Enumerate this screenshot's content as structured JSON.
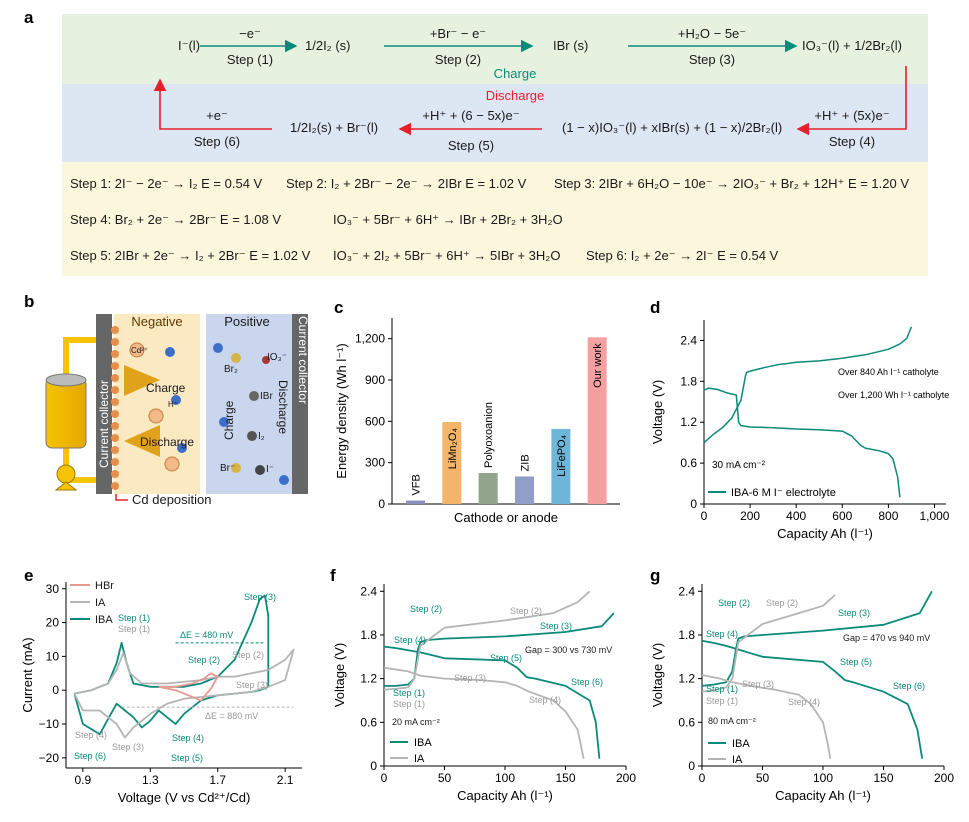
{
  "panel_labels": {
    "a": "a",
    "b": "b",
    "c": "c",
    "d": "d",
    "e": "e",
    "f": "f",
    "g": "g"
  },
  "colors": {
    "teal": "#0a8a7a",
    "red": "#e6202a",
    "gray": "#b5b5b5",
    "green_band": "#e6f1df",
    "blue_band": "#dde6f3",
    "cream_band": "#fbf6dc",
    "salmon": "#e8998f"
  },
  "panel_a": {
    "charge_label": "Charge",
    "discharge_label": "Discharge",
    "top_row": {
      "n1": "I⁻(l)",
      "n2": "1/2I₂ (s)",
      "n3": "IBr (s)",
      "n4": "IO₃⁻(l) + 1/2Br₂(l)",
      "a1_top": "−e⁻",
      "a1_bot": "Step (1)",
      "a2_top": "+Br⁻ − e⁻",
      "a2_bot": "Step (2)",
      "a3_top": "+H₂O − 5e⁻",
      "a3_bot": "Step (3)"
    },
    "bottom_row": {
      "n1": "1/2I₂(s) + Br⁻(l)",
      "n2": "(1 − x)IO₃⁻(l) + xIBr(s) + (1 − x)/2Br₂(l)",
      "a6_top": "+e⁻",
      "a6_bot": "Step (6)",
      "a5_top": "+H⁺ + (6 − 5x)e⁻",
      "a5_bot": "Step (5)",
      "a4_top": "+H⁺ + (5x)e⁻",
      "a4_bot": "Step (4)"
    },
    "equations": {
      "s1": "Step 1: 2I⁻ − 2e⁻ → I₂  E = 0.54 V",
      "s2": "Step 2: I₂ + 2Br⁻ − 2e⁻ → 2IBr  E = 1.02 V",
      "s3": "Step 3: 2IBr + 6H₂O − 10e⁻ → 2IO₃⁻ + Br₂ + 12H⁺  E = 1.20 V",
      "s4": "Step 4: Br₂ + 2e⁻ → 2Br⁻  E = 1.08 V",
      "s4b": "IO₃⁻ + 5Br⁻ + 6H⁺ → IBr + 2Br₂ + 3H₂O",
      "s5": "Step 5: 2IBr + 2e⁻ → I₂ + 2Br⁻  E = 1.02 V",
      "s5b": "IO₃⁻ + 2I₂ + 5Br⁻ + 6H⁺ → 5IBr + 3H₂O",
      "s6": "Step 6: I₂ + 2e⁻ → 2I⁻  E = 0.54 V"
    }
  },
  "panel_b": {
    "negative": "Negative",
    "positive": "Positive",
    "collector_left": "Current collector",
    "collector_right": "Current collector",
    "charge": "Charge",
    "discharge": "Discharge",
    "charge_mid": "Charge",
    "discharge_right": "Discharge",
    "cd_deposition": "Cd deposition",
    "species": {
      "cd": "Cd²⁺",
      "h": "H⁺",
      "io3": "IO₃⁻",
      "br2": "Br₂",
      "ibr": "IBr",
      "i2": "I₂",
      "br": "Br⁻",
      "i": "I⁻"
    }
  },
  "chart_data": [
    {
      "panel": "c",
      "type": "bar",
      "categories": [
        "VFB",
        "LiMn2O4",
        "Polyoxoanion",
        "ZIB",
        "LiFePO4",
        "Our work"
      ],
      "display_labels": [
        "VFB",
        "LiMn₂O₄",
        "Polyoxoanion",
        "ZIB",
        "LiFePO₄",
        "Our work"
      ],
      "values": [
        25,
        595,
        225,
        200,
        545,
        1210
      ],
      "colors": [
        "#8f8fbf",
        "#f2b56a",
        "#8fa48a",
        "#8f9fc8",
        "#6fb5d8",
        "#f5a0a0"
      ],
      "xlabel": "Cathode or anode",
      "ylabel": "Energy density (Wh l⁻¹)",
      "ylim": [
        0,
        1350
      ],
      "yticks": [
        0,
        300,
        600,
        900,
        1200
      ],
      "ytick_labels": [
        "0",
        "300",
        "600",
        "900",
        "1,200"
      ]
    },
    {
      "panel": "d",
      "type": "line",
      "xlabel": "Capacity Ah (l⁻¹)",
      "ylabel": "Voltage (V)",
      "xlim": [
        0,
        1050
      ],
      "ylim": [
        0,
        2.7
      ],
      "xticks": [
        0,
        200,
        400,
        600,
        800,
        1000
      ],
      "xtick_labels": [
        "0",
        "200",
        "400",
        "600",
        "800",
        "1,000"
      ],
      "yticks": [
        0,
        0.6,
        1.2,
        1.8,
        2.4
      ],
      "ytick_labels": [
        "0",
        "0.6",
        "1.2",
        "1.8",
        "2.4"
      ],
      "annotations": [
        "Over 840 Ah l⁻¹ catholyte",
        "Over 1,200 Wh l⁻¹ catholyte",
        "30 mA cm⁻²"
      ],
      "legend": "IBA-6 M I⁻ electrolyte",
      "series": [
        {
          "name": "charge",
          "x": [
            0,
            40,
            80,
            120,
            160,
            180,
            185,
            200,
            260,
            300,
            330,
            360,
            400,
            500,
            600,
            700,
            800,
            850,
            880,
            900
          ],
          "y": [
            0.9,
            1.02,
            1.12,
            1.26,
            1.52,
            1.88,
            1.93,
            1.95,
            2.0,
            2.03,
            2.05,
            2.06,
            2.08,
            2.1,
            2.14,
            2.19,
            2.27,
            2.35,
            2.43,
            2.6
          ]
        },
        {
          "name": "discharge",
          "x": [
            0,
            20,
            60,
            100,
            140,
            150,
            160,
            200,
            300,
            400,
            500,
            600,
            640,
            660,
            680,
            700,
            760,
            800,
            820,
            840,
            850
          ],
          "y": [
            1.67,
            1.7,
            1.68,
            1.63,
            1.6,
            1.2,
            1.15,
            1.13,
            1.12,
            1.1,
            1.09,
            1.07,
            1.0,
            0.93,
            0.86,
            0.82,
            0.78,
            0.74,
            0.66,
            0.4,
            0.1
          ]
        }
      ]
    },
    {
      "panel": "e",
      "type": "line",
      "xlabel": "Voltage (V vs Cd²⁺/Cd)",
      "ylabel": "Current (mA)",
      "xlim": [
        0.8,
        2.2
      ],
      "ylim": [
        -23,
        32
      ],
      "xticks": [
        0.9,
        1.3,
        1.7,
        2.1
      ],
      "xtick_labels": [
        "0.9",
        "1.3",
        "1.7",
        "2.1"
      ],
      "yticks": [
        -20,
        -10,
        0,
        10,
        20,
        30
      ],
      "ytick_labels": [
        "−20",
        "−10",
        "0",
        "10",
        "20",
        "30"
      ],
      "legend": [
        "HBr",
        "IA",
        "IBA"
      ],
      "annotations": [
        "Step (1)",
        "Step (1)",
        "ΔE = 480 mV",
        "ΔE = 880 mV",
        "Step (2)",
        "Step (2)",
        "Step (3)",
        "Step (3)",
        "Step (4)",
        "Step (4)",
        "Step (5)",
        "Step (6)"
      ],
      "series": [
        {
          "name": "IBA",
          "x": [
            0.85,
            0.95,
            1.05,
            1.1,
            1.13,
            1.16,
            1.2,
            1.3,
            1.4,
            1.5,
            1.6,
            1.7,
            1.8,
            1.9,
            1.95,
            1.98,
            2.0,
            2.0,
            1.95,
            1.9,
            1.8,
            1.7,
            1.6,
            1.5,
            1.45,
            1.4,
            1.35,
            1.3,
            1.25,
            1.2,
            1.15,
            1.1,
            1.0,
            0.9,
            0.85
          ],
          "y": [
            -1,
            0,
            2,
            8,
            14,
            8,
            2,
            1,
            1,
            1,
            2,
            4,
            9,
            20,
            27,
            28,
            22,
            1,
            0,
            -0.5,
            -1,
            -1.5,
            -3,
            -7,
            -10,
            -8,
            -6,
            -9,
            -11,
            -8,
            -6,
            -4,
            -13,
            -10,
            -1
          ]
        },
        {
          "name": "IA",
          "x": [
            0.85,
            0.95,
            1.05,
            1.1,
            1.14,
            1.18,
            1.25,
            1.4,
            1.6,
            1.7,
            1.8,
            1.9,
            2.0,
            2.1,
            2.15,
            2.1,
            2.0,
            1.9,
            1.8,
            1.7,
            1.6,
            1.5,
            1.4,
            1.3,
            1.2,
            1.15,
            1.1,
            1.0,
            0.9,
            0.85
          ],
          "y": [
            -1,
            0,
            2,
            6,
            11,
            5,
            2,
            2,
            3,
            4,
            4,
            5,
            6,
            9,
            12,
            3,
            1,
            -0.5,
            -1,
            -1.5,
            -2,
            -2.5,
            -4,
            -7,
            -11,
            -14,
            -10,
            -6,
            -6,
            -1
          ]
        },
        {
          "name": "HBr",
          "x": [
            1.35,
            1.45,
            1.55,
            1.62,
            1.66,
            1.7,
            1.66,
            1.6,
            1.5,
            1.45,
            1.4,
            1.35
          ],
          "y": [
            1,
            1,
            2,
            3.5,
            5,
            4,
            0.5,
            -3,
            -1,
            0,
            0.5,
            1
          ]
        }
      ]
    },
    {
      "panel": "f",
      "type": "line",
      "xlabel": "Capacity Ah (l⁻¹)",
      "ylabel": "Voltage (V)",
      "xlim": [
        0,
        200
      ],
      "ylim": [
        0,
        2.5
      ],
      "xticks": [
        0,
        50,
        100,
        150,
        200
      ],
      "xtick_labels": [
        "0",
        "50",
        "100",
        "150",
        "200"
      ],
      "yticks": [
        0,
        0.6,
        1.2,
        1.8,
        2.4
      ],
      "ytick_labels": [
        "0",
        "0.6",
        "1.2",
        "1.8",
        "2.4"
      ],
      "annotations": [
        "Gap = 300 vs 730 mV",
        "20 mA cm⁻²"
      ],
      "legend": [
        "IBA",
        "IA"
      ],
      "series": [
        {
          "name": "IBA charge",
          "x": [
            0,
            10,
            20,
            25,
            28,
            30,
            35,
            50,
            100,
            150,
            180,
            190
          ],
          "y": [
            1.1,
            1.1,
            1.12,
            1.2,
            1.6,
            1.7,
            1.73,
            1.75,
            1.78,
            1.84,
            1.92,
            2.1
          ]
        },
        {
          "name": "IBA discharge",
          "x": [
            0,
            10,
            20,
            30,
            40,
            50,
            100,
            110,
            118,
            125,
            150,
            170,
            175,
            178
          ],
          "y": [
            1.64,
            1.62,
            1.59,
            1.56,
            1.52,
            1.48,
            1.45,
            1.35,
            1.22,
            1.2,
            1.1,
            0.9,
            0.6,
            0.1
          ]
        },
        {
          "name": "IA charge",
          "x": [
            0,
            10,
            20,
            25,
            30,
            50,
            100,
            140,
            160,
            170
          ],
          "y": [
            1.05,
            1.06,
            1.08,
            1.2,
            1.65,
            1.9,
            2.0,
            2.1,
            2.25,
            2.4
          ]
        },
        {
          "name": "IA discharge",
          "x": [
            0,
            20,
            30,
            50,
            80,
            100,
            110,
            120,
            140,
            150,
            160,
            165
          ],
          "y": [
            1.35,
            1.3,
            1.24,
            1.2,
            1.18,
            1.15,
            1.1,
            1.02,
            0.9,
            0.75,
            0.5,
            0.1
          ]
        }
      ]
    },
    {
      "panel": "g",
      "type": "line",
      "xlabel": "Capacity Ah (l⁻¹)",
      "ylabel": "Voltage (V)",
      "xlim": [
        0,
        200
      ],
      "ylim": [
        0,
        2.5
      ],
      "xticks": [
        0,
        50,
        100,
        150,
        200
      ],
      "xtick_labels": [
        "0",
        "50",
        "100",
        "150",
        "200"
      ],
      "yticks": [
        0,
        0.6,
        1.2,
        1.8,
        2.4
      ],
      "ytick_labels": [
        "0",
        "0.6",
        "1.2",
        "1.8",
        "2.4"
      ],
      "annotations": [
        "Gap = 470 vs 940 mV",
        "80 mA cm⁻²"
      ],
      "legend": [
        "IBA",
        "IA"
      ],
      "series": [
        {
          "name": "IBA charge",
          "x": [
            0,
            10,
            20,
            25,
            28,
            30,
            35,
            50,
            100,
            150,
            180,
            190
          ],
          "y": [
            1.1,
            1.12,
            1.15,
            1.3,
            1.6,
            1.75,
            1.78,
            1.8,
            1.86,
            1.94,
            2.1,
            2.4
          ]
        },
        {
          "name": "IBA discharge",
          "x": [
            0,
            10,
            20,
            30,
            40,
            50,
            100,
            110,
            118,
            125,
            150,
            170,
            178,
            182
          ],
          "y": [
            1.72,
            1.69,
            1.65,
            1.6,
            1.55,
            1.5,
            1.43,
            1.3,
            1.18,
            1.15,
            1.02,
            0.85,
            0.5,
            0.1
          ]
        },
        {
          "name": "IA charge",
          "x": [
            0,
            10,
            20,
            25,
            30,
            50,
            80,
            100,
            110
          ],
          "y": [
            1.02,
            1.04,
            1.08,
            1.2,
            1.7,
            1.95,
            2.1,
            2.2,
            2.35
          ]
        },
        {
          "name": "IA discharge",
          "x": [
            0,
            15,
            25,
            40,
            60,
            80,
            90,
            100,
            104,
            106
          ],
          "y": [
            1.25,
            1.2,
            1.15,
            1.1,
            1.05,
            0.98,
            0.85,
            0.6,
            0.3,
            0.1
          ]
        }
      ]
    }
  ],
  "panel_e_legend": [
    "HBr",
    "IA",
    "IBA"
  ],
  "panel_e_annot": {
    "step1a": "Step (1)",
    "step1b": "Step (1)",
    "de480": "ΔE = 480 mV",
    "de880": "ΔE = 880 mV",
    "step2a": "Step (2)",
    "step2b": "Step (2)",
    "step3a": "Step (3)",
    "step3b": "Step (3)",
    "step4a": "Step (4)",
    "step4b": "Step (4)",
    "step3c": "Step (3)",
    "step5": "Step (5)",
    "step6": "Step (6)"
  },
  "panel_f_annot": {
    "step2a": "Step (2)",
    "step2b": "Step (2)",
    "step3a": "Step (3)",
    "step4": "Step (4)",
    "step5": "Step (5)",
    "step1a": "Step (1)",
    "step1b": "Step (1)",
    "step3b": "Step (3)",
    "step4b": "Step (4)",
    "step6": "Step (6)",
    "gap": "Gap = 300 vs 730 mV",
    "current": "20 mA cm⁻²"
  },
  "panel_g_annot": {
    "step2a": "Step (2)",
    "step2b": "Step (2)",
    "step3a": "Step (3)",
    "step4": "Step (4)",
    "step5": "Step (5)",
    "step1a": "Step (1)",
    "step1b": "Step (1)",
    "step3b": "Step (3)",
    "step4b": "Step (4)",
    "step6": "Step (6)",
    "gap": "Gap = 470 vs 940 mV",
    "current": "80 mA cm⁻²"
  }
}
